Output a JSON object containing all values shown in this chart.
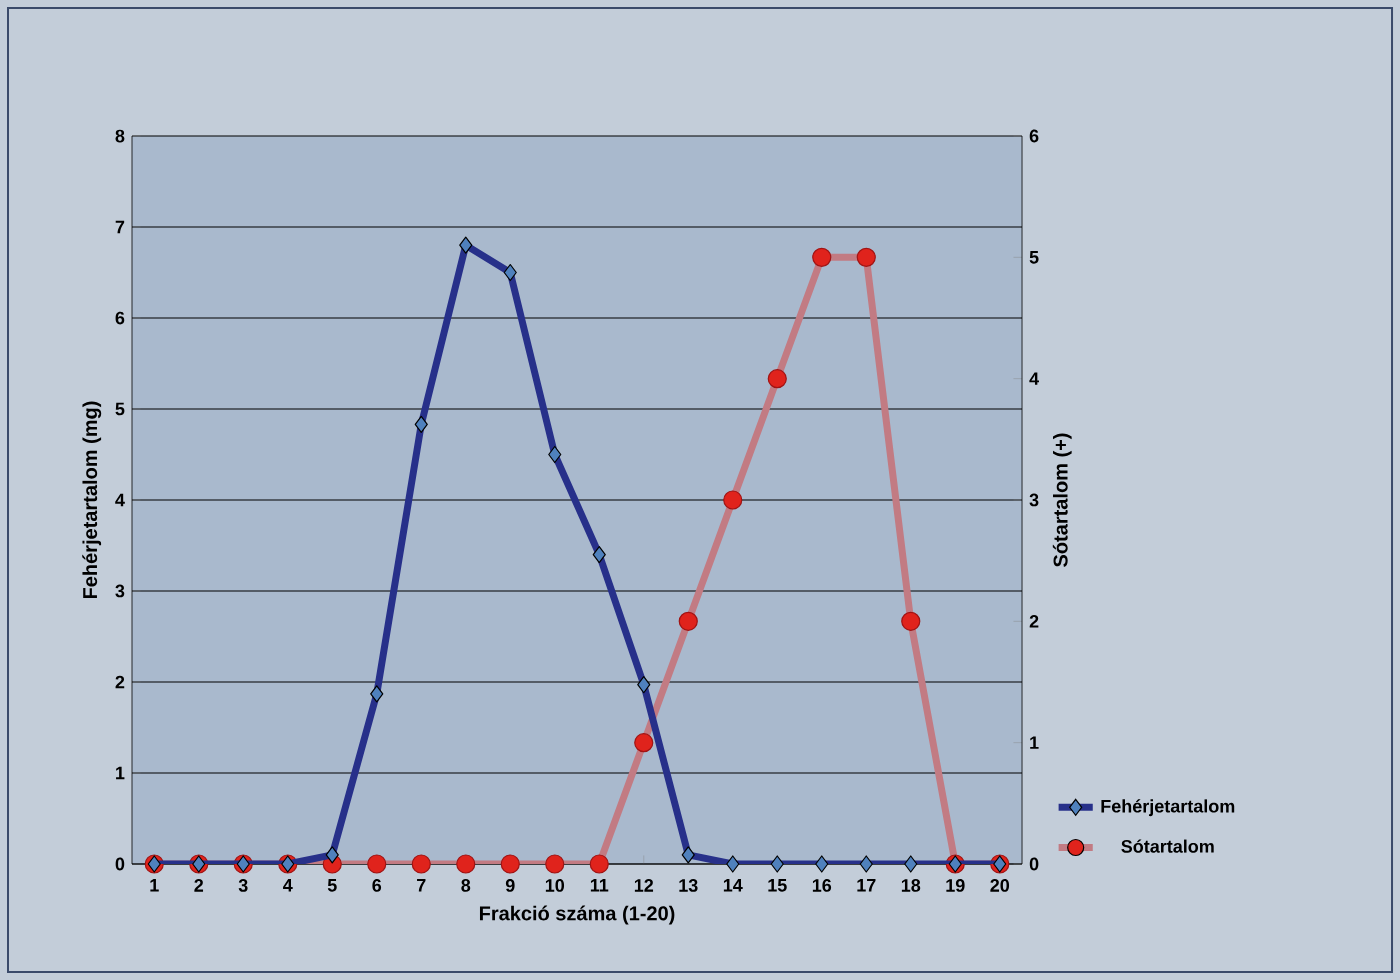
{
  "chart_data": {
    "type": "line",
    "xlabel": "Frakció száma (1-20)",
    "ylabel": "Fehérjetartalom (mg)",
    "y2label": "Sótartalom (+)",
    "categories": [
      "1",
      "2",
      "3",
      "4",
      "5",
      "6",
      "7",
      "8",
      "9",
      "10",
      "11",
      "12",
      "13",
      "14",
      "15",
      "16",
      "17",
      "18",
      "19",
      "20"
    ],
    "series": [
      {
        "name": "Fehérjetartalom",
        "color": "#27308a",
        "marker": "diamond",
        "values": [
          0,
          0,
          0,
          0,
          0.1,
          1.87,
          4.83,
          6.8,
          6.5,
          4.5,
          3.4,
          1.97,
          0.1,
          0,
          0,
          0,
          0,
          0,
          0,
          0
        ]
      },
      {
        "name": "Sótartalom",
        "color": "#c27b83",
        "marker": "circle",
        "axis": "y2",
        "values": [
          0,
          0,
          0,
          0,
          0,
          0,
          0,
          0,
          0,
          0,
          0,
          1,
          2,
          3,
          4,
          5,
          5,
          2,
          0,
          0
        ]
      }
    ],
    "ylim": [
      0,
      8
    ],
    "yticks": [
      0,
      1,
      2,
      3,
      4,
      5,
      6,
      7,
      8
    ],
    "y2lim": [
      0,
      6
    ],
    "y2ticks": [
      0,
      1,
      2,
      3,
      4,
      5,
      6
    ],
    "grid": "y",
    "legend": "bottom right"
  }
}
